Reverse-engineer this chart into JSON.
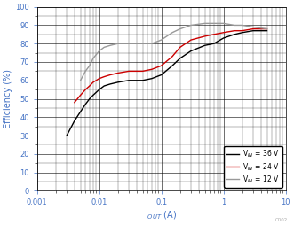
{
  "xlabel": "I$_{OUT}$ (A)",
  "ylabel": "Efficiency (%)",
  "xlim": [
    0.001,
    10
  ],
  "ylim": [
    0,
    100
  ],
  "yticks": [
    0,
    10,
    20,
    30,
    40,
    50,
    60,
    70,
    80,
    90,
    100
  ],
  "legend": [
    {
      "label": "V$_{IN}$ = 36 V",
      "color": "#000000"
    },
    {
      "label": "V$_{IN}$ = 24 V",
      "color": "#cc0000"
    },
    {
      "label": "V$_{IN}$ = 12 V",
      "color": "#999999"
    }
  ],
  "series_36V": {
    "x": [
      0.003,
      0.004,
      0.005,
      0.006,
      0.007,
      0.008,
      0.01,
      0.012,
      0.015,
      0.02,
      0.03,
      0.05,
      0.07,
      0.1,
      0.15,
      0.2,
      0.3,
      0.5,
      0.7,
      1.0,
      1.5,
      2.0,
      3.0,
      5.0
    ],
    "y": [
      30,
      38,
      43,
      47,
      50,
      52,
      55,
      57,
      58,
      59,
      60,
      60,
      61,
      63,
      68,
      72,
      76,
      79,
      80,
      83,
      85,
      86,
      87,
      87
    ],
    "color": "#000000"
  },
  "series_24V": {
    "x": [
      0.004,
      0.005,
      0.006,
      0.007,
      0.008,
      0.01,
      0.012,
      0.015,
      0.02,
      0.03,
      0.05,
      0.07,
      0.1,
      0.15,
      0.2,
      0.3,
      0.5,
      0.7,
      1.0,
      1.5,
      2.0,
      3.0,
      5.0
    ],
    "y": [
      48,
      52,
      55,
      57,
      59,
      61,
      62,
      63,
      64,
      65,
      65,
      66,
      68,
      73,
      78,
      82,
      84,
      85,
      86,
      87,
      87,
      88,
      88
    ],
    "color": "#cc0000"
  },
  "series_12V": {
    "x": [
      0.005,
      0.006,
      0.007,
      0.008,
      0.01,
      0.012,
      0.015,
      0.02,
      0.03,
      0.05,
      0.07,
      0.1,
      0.15,
      0.2,
      0.3,
      0.5,
      0.7,
      1.0,
      1.5,
      2.0,
      3.0,
      5.0
    ],
    "y": [
      60,
      65,
      68,
      72,
      76,
      78,
      79,
      80,
      80,
      80,
      80,
      82,
      86,
      88,
      90,
      91,
      91,
      91,
      90,
      90,
      89,
      88
    ],
    "color": "#999999"
  },
  "background_color": "#ffffff",
  "grid_major_color": "#000000",
  "grid_minor_color": "#000000",
  "label_color": "#4472c4",
  "tick_color": "#4472c4",
  "linewidth": 1.0,
  "annotation": "C002",
  "legend_fontsize": 5.5,
  "axis_label_fontsize": 7.0,
  "tick_fontsize": 6.0
}
